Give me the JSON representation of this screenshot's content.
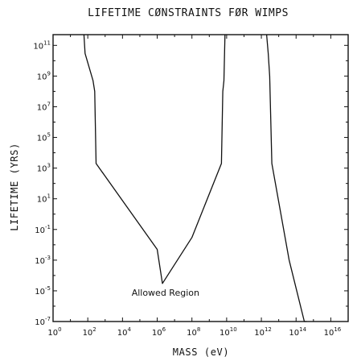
{
  "chart_data": {
    "type": "line",
    "title": "LIFETIME CØNSTRAINTS FØR WIMPS",
    "xlabel": "MASS (eV)",
    "ylabel": "LIFETIME (YRS)",
    "x_scale": "log",
    "y_scale": "log",
    "xlim": [
      1,
      1e+17
    ],
    "ylim": [
      1e-07,
      500000000000.0
    ],
    "grid": false,
    "x_ticks": [
      {
        "base": "10",
        "exp": "0",
        "value": 1
      },
      {
        "base": "10",
        "exp": "2",
        "value": 100
      },
      {
        "base": "10",
        "exp": "4",
        "value": 10000
      },
      {
        "base": "10",
        "exp": "6",
        "value": 1000000
      },
      {
        "base": "10",
        "exp": "8",
        "value": 100000000
      },
      {
        "base": "10",
        "exp": "10",
        "value": 10000000000
      },
      {
        "base": "10",
        "exp": "12",
        "value": 1000000000000
      },
      {
        "base": "10",
        "exp": "14",
        "value": 100000000000000
      },
      {
        "base": "10",
        "exp": "16",
        "value": 10000000000000000
      }
    ],
    "y_ticks": [
      {
        "base": "10",
        "exp": "11",
        "value": 100000000000
      },
      {
        "base": "10",
        "exp": "9",
        "value": 1000000000
      },
      {
        "base": "10",
        "exp": "7",
        "value": 10000000
      },
      {
        "base": "10",
        "exp": "5",
        "value": 100000
      },
      {
        "base": "10",
        "exp": "3",
        "value": 1000
      },
      {
        "base": "10",
        "exp": "1",
        "value": 10
      },
      {
        "base": "10",
        "exp": "-1",
        "value": 0.1
      },
      {
        "base": "10",
        "exp": "-3",
        "value": 0.001
      },
      {
        "base": "10",
        "exp": "-5",
        "value": 1e-05
      },
      {
        "base": "10",
        "exp": "-7",
        "value": 1e-07
      }
    ],
    "series": [
      {
        "x": [
          60,
          70,
          200,
          250,
          300,
          1000000,
          2000000,
          100000000,
          5000000000,
          6000000000,
          7000000000,
          8000000000
        ],
        "y": [
          500000000000.0,
          30000000000.0,
          500000000.0,
          100000000.0,
          2000,
          0.005,
          3e-05,
          0.03,
          2000,
          100000000.0,
          500000000.0,
          500000000000.0
        ]
      },
      {
        "x": [
          2000000000000,
          2500000000000,
          3000000000000,
          4000000000000,
          40000000000000,
          300000000000000,
          400000000000000
        ],
        "y": [
          500000000000.0,
          30000000000.0,
          1000000000.0,
          2000,
          0.001,
          1e-07,
          1e-08
        ]
      }
    ],
    "annotations": [
      {
        "text": "Allowed Region",
        "x": 3000000,
        "y": 8e-06
      }
    ],
    "colors": {
      "line": "#111111",
      "background": "#ffffff"
    }
  }
}
